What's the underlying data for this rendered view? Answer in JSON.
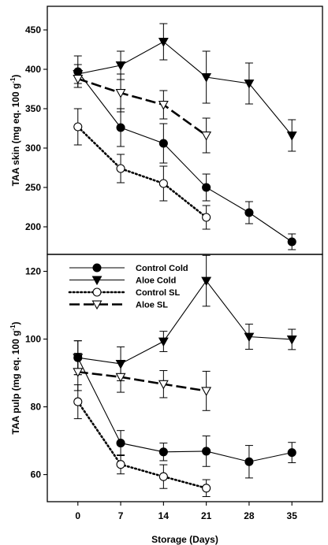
{
  "chart_data": {
    "type": "line",
    "xlabel": "Storage (Days)",
    "x_ticks": [
      0,
      7,
      14,
      21,
      28,
      35
    ],
    "xlim": [
      -5,
      40
    ],
    "panels": [
      {
        "id": "skin",
        "ylabel": "TAA skin (mg eq. 100 g",
        "ylabel_sup": "-1",
        "ylabel_close": ")",
        "ylim": [
          165,
          480
        ],
        "y_ticks": [
          200,
          250,
          300,
          350,
          400,
          450
        ],
        "series": [
          {
            "name": "Control Cold",
            "style": "solid",
            "marker": "circle",
            "fill": "#000000",
            "x": [
              0,
              7,
              14,
              21,
              28,
              35
            ],
            "y": [
              397,
              326,
              306,
              250,
              218,
              181
            ],
            "err": [
              20,
              24,
              25,
              17,
              14,
              10
            ]
          },
          {
            "name": "Aloe Cold",
            "style": "solid",
            "marker": "triangle-down",
            "fill": "#000000",
            "x": [
              0,
              7,
              14,
              21,
              28,
              35
            ],
            "y": [
              394,
              405,
              435,
              390,
              382,
              316
            ],
            "err": [
              12,
              18,
              23,
              33,
              26,
              20
            ]
          },
          {
            "name": "Control SL",
            "style": "dotted",
            "marker": "circle",
            "fill": "#ffffff",
            "x": [
              0,
              7,
              14,
              21
            ],
            "y": [
              327,
              274,
              255,
              212
            ],
            "err": [
              23,
              18,
              22,
              15
            ]
          },
          {
            "name": "Aloe SL",
            "style": "dashed",
            "marker": "triangle-down",
            "fill": "#ffffff",
            "x": [
              0,
              7,
              14,
              21
            ],
            "y": [
              388,
              370,
              355,
              316
            ],
            "err": [
              11,
              24,
              18,
              22
            ]
          }
        ]
      },
      {
        "id": "pulp",
        "ylabel": "TAA pulp (mg eq. 100 g",
        "ylabel_sup": "-1",
        "ylabel_close": ")",
        "ylim": [
          52,
          125
        ],
        "y_ticks": [
          60,
          80,
          100,
          120
        ],
        "series": [
          {
            "name": "Control Cold",
            "style": "solid",
            "marker": "circle",
            "fill": "#000000",
            "x": [
              0,
              7,
              14,
              21,
              28,
              35
            ],
            "y": [
              94.5,
              69.3,
              66.7,
              66.9,
              63.8,
              66.5
            ],
            "err": [
              5,
              3.7,
              2.6,
              4.5,
              4.8,
              3
            ]
          },
          {
            "name": "Aloe Cold",
            "style": "solid",
            "marker": "triangle-down",
            "fill": "#000000",
            "x": [
              0,
              7,
              14,
              21,
              28,
              35
            ],
            "y": [
              94.5,
              92.7,
              99.3,
              117.2,
              100.7,
              99.9
            ],
            "err": [
              5,
              5,
              3,
              7.5,
              3.7,
              3
            ]
          },
          {
            "name": "Control SL",
            "style": "dotted",
            "marker": "circle",
            "fill": "#ffffff",
            "x": [
              0,
              7,
              14,
              21
            ],
            "y": [
              81.5,
              63.0,
              59.4,
              56.0
            ],
            "err": [
              5,
              2.8,
              3.5,
              2.5
            ]
          },
          {
            "name": "Aloe SL",
            "style": "dashed",
            "marker": "triangle-down",
            "fill": "#ffffff",
            "x": [
              0,
              7,
              14,
              21
            ],
            "y": [
              90.3,
              88.8,
              86.7,
              84.7
            ],
            "err": [
              5.5,
              4.5,
              4,
              5.8
            ]
          }
        ]
      }
    ],
    "legend": {
      "placement": "top-left of lower panel",
      "entries": [
        {
          "label": "Control Cold",
          "style": "solid",
          "marker": "circle",
          "fill": "#000000"
        },
        {
          "label": "Aloe Cold",
          "style": "solid",
          "marker": "triangle-down",
          "fill": "#000000"
        },
        {
          "label": "Control SL",
          "style": "dotted",
          "marker": "circle",
          "fill": "#ffffff"
        },
        {
          "label": "Aloe SL",
          "style": "dashed",
          "marker": "triangle-down",
          "fill": "#ffffff"
        }
      ]
    },
    "grid": false,
    "line_color": "#000000"
  }
}
